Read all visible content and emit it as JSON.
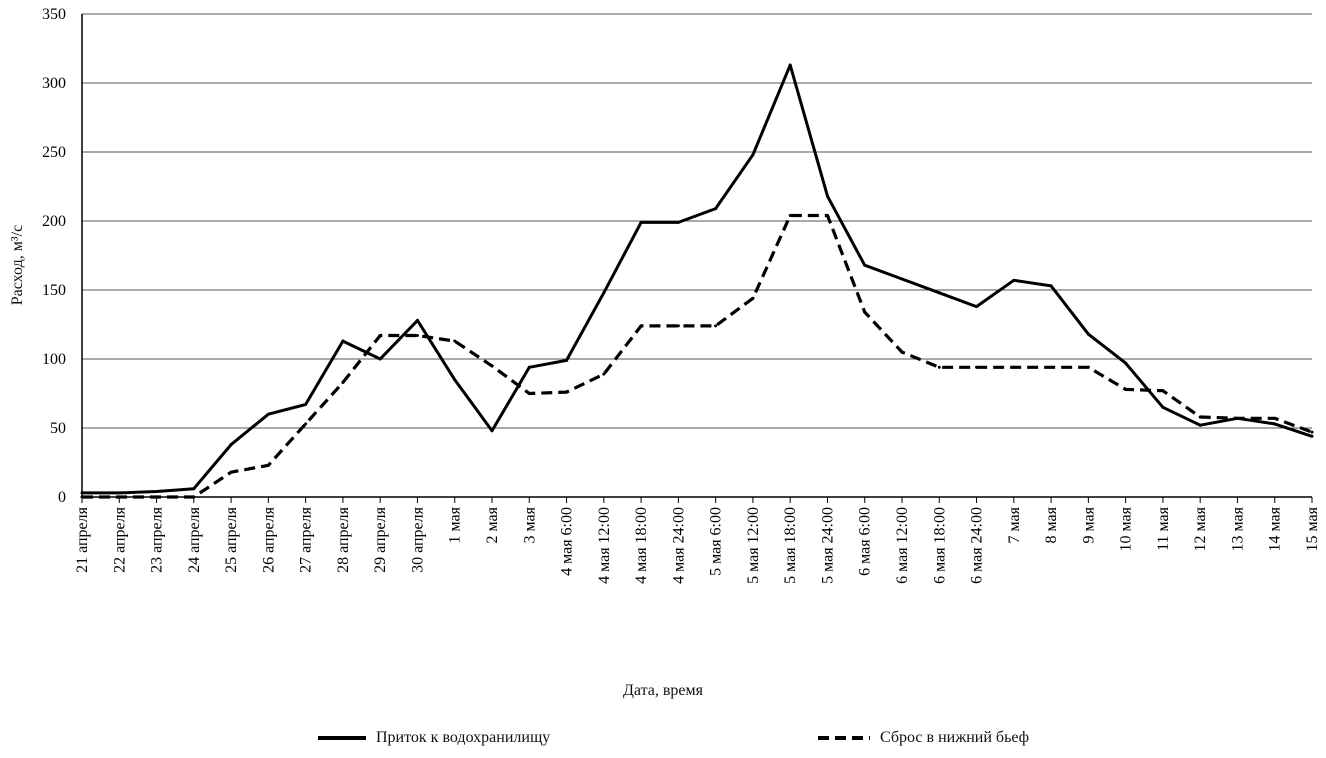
{
  "chart_data": {
    "type": "line",
    "xlabel": "Дата, время",
    "ylabel": "Расход, м³/с",
    "ylim": [
      0,
      350
    ],
    "yticks": [
      0,
      50,
      100,
      150,
      200,
      250,
      300,
      350
    ],
    "grid": true,
    "legend_position": "bottom",
    "categories": [
      "21 апреля",
      "22 апреля",
      "23 апреля",
      "24 апреля",
      "25 апреля",
      "26 апреля",
      "27 апреля",
      "28 апреля",
      "29 апреля",
      "30 апреля",
      "1 мая",
      "2 мая",
      "3 мая",
      "4 мая 6:00",
      "4 мая 12:00",
      "4 мая 18:00",
      "4 мая 24:00",
      "5 мая 6:00",
      "5 мая 12:00",
      "5 мая 18:00",
      "5 мая 24:00",
      "6 мая 6:00",
      "6 мая 12:00",
      "6 мая 18:00",
      "6 мая 24:00",
      "7 мая",
      "8 мая",
      "9 мая",
      "10 мая",
      "11 мая",
      "12 мая",
      "13 мая",
      "14 мая",
      "15 мая"
    ],
    "series": [
      {
        "name": "Приток к водохранилищу",
        "style": "solid",
        "color": "#000000",
        "values": [
          3,
          3,
          4,
          6,
          38,
          60,
          67,
          113,
          100,
          128,
          85,
          48,
          94,
          99,
          148,
          199,
          199,
          209,
          248,
          313,
          218,
          168,
          158,
          148,
          138,
          157,
          153,
          118,
          97,
          65,
          52,
          57,
          53,
          44
        ]
      },
      {
        "name": "Сброс в нижний бьеф",
        "style": "dashed",
        "color": "#000000",
        "values": [
          0,
          0,
          0,
          0,
          18,
          23,
          53,
          83,
          117,
          117,
          113,
          95,
          75,
          76,
          89,
          124,
          124,
          124,
          144,
          204,
          204,
          134,
          105,
          94,
          94,
          94,
          94,
          94,
          78,
          77,
          58,
          57,
          57,
          47
        ]
      }
    ]
  }
}
